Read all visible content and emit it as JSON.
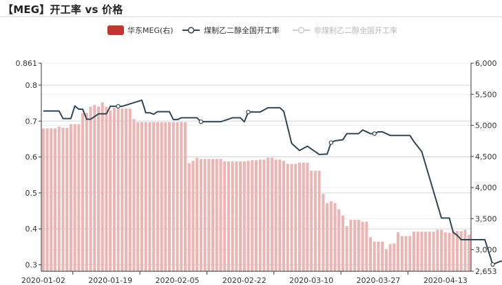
{
  "title": "【MEG】开工率 vs 价格",
  "chart_data": {
    "type": "bar+line",
    "title": "【MEG】开工率 vs 价格",
    "legend_position": "top-center",
    "grid": true,
    "x_ticks": [
      "2020-01-02",
      "2020-01-19",
      "2020-02-05",
      "2020-02-22",
      "2020-03-10",
      "2020-03-27",
      "2020-04-13"
    ],
    "y_left": {
      "min": 0.282,
      "max": 0.861,
      "ticks": [
        "0.861",
        "0.8",
        "0.7",
        "0.6",
        "0.5",
        "0.4",
        "0.3"
      ]
    },
    "y_right": {
      "min": 2653,
      "max": 6000,
      "ticks": [
        "6,000",
        "5,500",
        "5,000",
        "4,500",
        "4,000",
        "3,500",
        "3,000",
        "2,653"
      ]
    },
    "series": [
      {
        "name": "华东MEG(右)",
        "type": "bar",
        "axis": "right",
        "color": "#c23531",
        "values": [
          4950,
          4950,
          4950,
          4950,
          4980,
          4960,
          4960,
          5020,
          5020,
          5020,
          5200,
          5200,
          5300,
          5330,
          5300,
          5370,
          5300,
          5240,
          5280,
          5270,
          5270,
          5270,
          5270,
          5100,
          5050,
          5050,
          5050,
          5050,
          5050,
          5050,
          5050,
          5050,
          5050,
          5050,
          5050,
          5050,
          5050,
          4390,
          4430,
          4480,
          4460,
          4460,
          4460,
          4460,
          4460,
          4460,
          4420,
          4420,
          4420,
          4420,
          4420,
          4420,
          4430,
          4440,
          4440,
          4450,
          4450,
          4480,
          4480,
          4450,
          4450,
          4430,
          4380,
          4380,
          4380,
          4400,
          4400,
          4400,
          4270,
          4270,
          4270,
          3900,
          3750,
          3780,
          3750,
          3650,
          3550,
          3380,
          3480,
          3480,
          3480,
          3450,
          3450,
          3200,
          3130,
          3130,
          3130,
          3010,
          3090,
          3100,
          3280,
          3220,
          3220,
          3220,
          3290,
          3290,
          3290,
          3290,
          3290,
          3290,
          3320,
          3320,
          3280,
          3270,
          3300,
          3300,
          3300,
          3320,
          3240
        ]
      },
      {
        "name": "煤制乙二醇全国开工率",
        "type": "line",
        "axis": "left",
        "color": "#2f4554",
        "x": [
          0,
          4,
          5,
          7,
          8,
          9,
          10,
          11,
          12,
          14,
          16,
          17,
          18,
          19,
          20,
          25,
          26,
          27,
          28,
          29,
          30,
          32,
          33,
          34,
          35,
          36,
          39,
          40,
          41,
          42,
          43,
          45,
          48,
          50,
          51,
          52,
          54,
          55,
          57,
          59,
          60,
          61,
          63,
          65,
          67,
          70,
          72,
          73,
          74,
          76,
          77,
          79,
          80,
          81,
          83,
          84,
          85,
          86,
          88,
          90,
          91,
          92,
          93,
          94,
          96,
          101,
          103,
          104,
          105,
          106,
          107,
          108,
          110,
          112,
          114,
          116,
          118
        ],
        "values": [
          0.728,
          0.728,
          0.707,
          0.707,
          0.742,
          0.733,
          0.733,
          0.705,
          0.705,
          0.72,
          0.72,
          0.741,
          0.741,
          0.741,
          0.741,
          0.758,
          0.723,
          0.723,
          0.719,
          0.726,
          0.726,
          0.726,
          0.704,
          0.704,
          0.709,
          0.709,
          0.709,
          0.698,
          0.698,
          0.698,
          0.698,
          0.698,
          0.709,
          0.709,
          0.698,
          0.725,
          0.725,
          0.725,
          0.737,
          0.737,
          0.737,
          0.727,
          0.638,
          0.618,
          0.63,
          0.607,
          0.608,
          0.64,
          0.645,
          0.648,
          0.665,
          0.665,
          0.665,
          0.675,
          0.665,
          0.665,
          0.67,
          0.67,
          0.66,
          0.66,
          0.66,
          0.66,
          0.66,
          0.643,
          0.615,
          0.43,
          0.43,
          0.39,
          0.382,
          0.37,
          0.37,
          0.37,
          0.37,
          0.37,
          0.301,
          0.31,
          0.31
        ]
      },
      {
        "name": "非煤制乙二醇全国开工率",
        "type": "line",
        "axis": "left",
        "color": "#cccccc",
        "legend_inactive": true,
        "values": []
      }
    ]
  }
}
